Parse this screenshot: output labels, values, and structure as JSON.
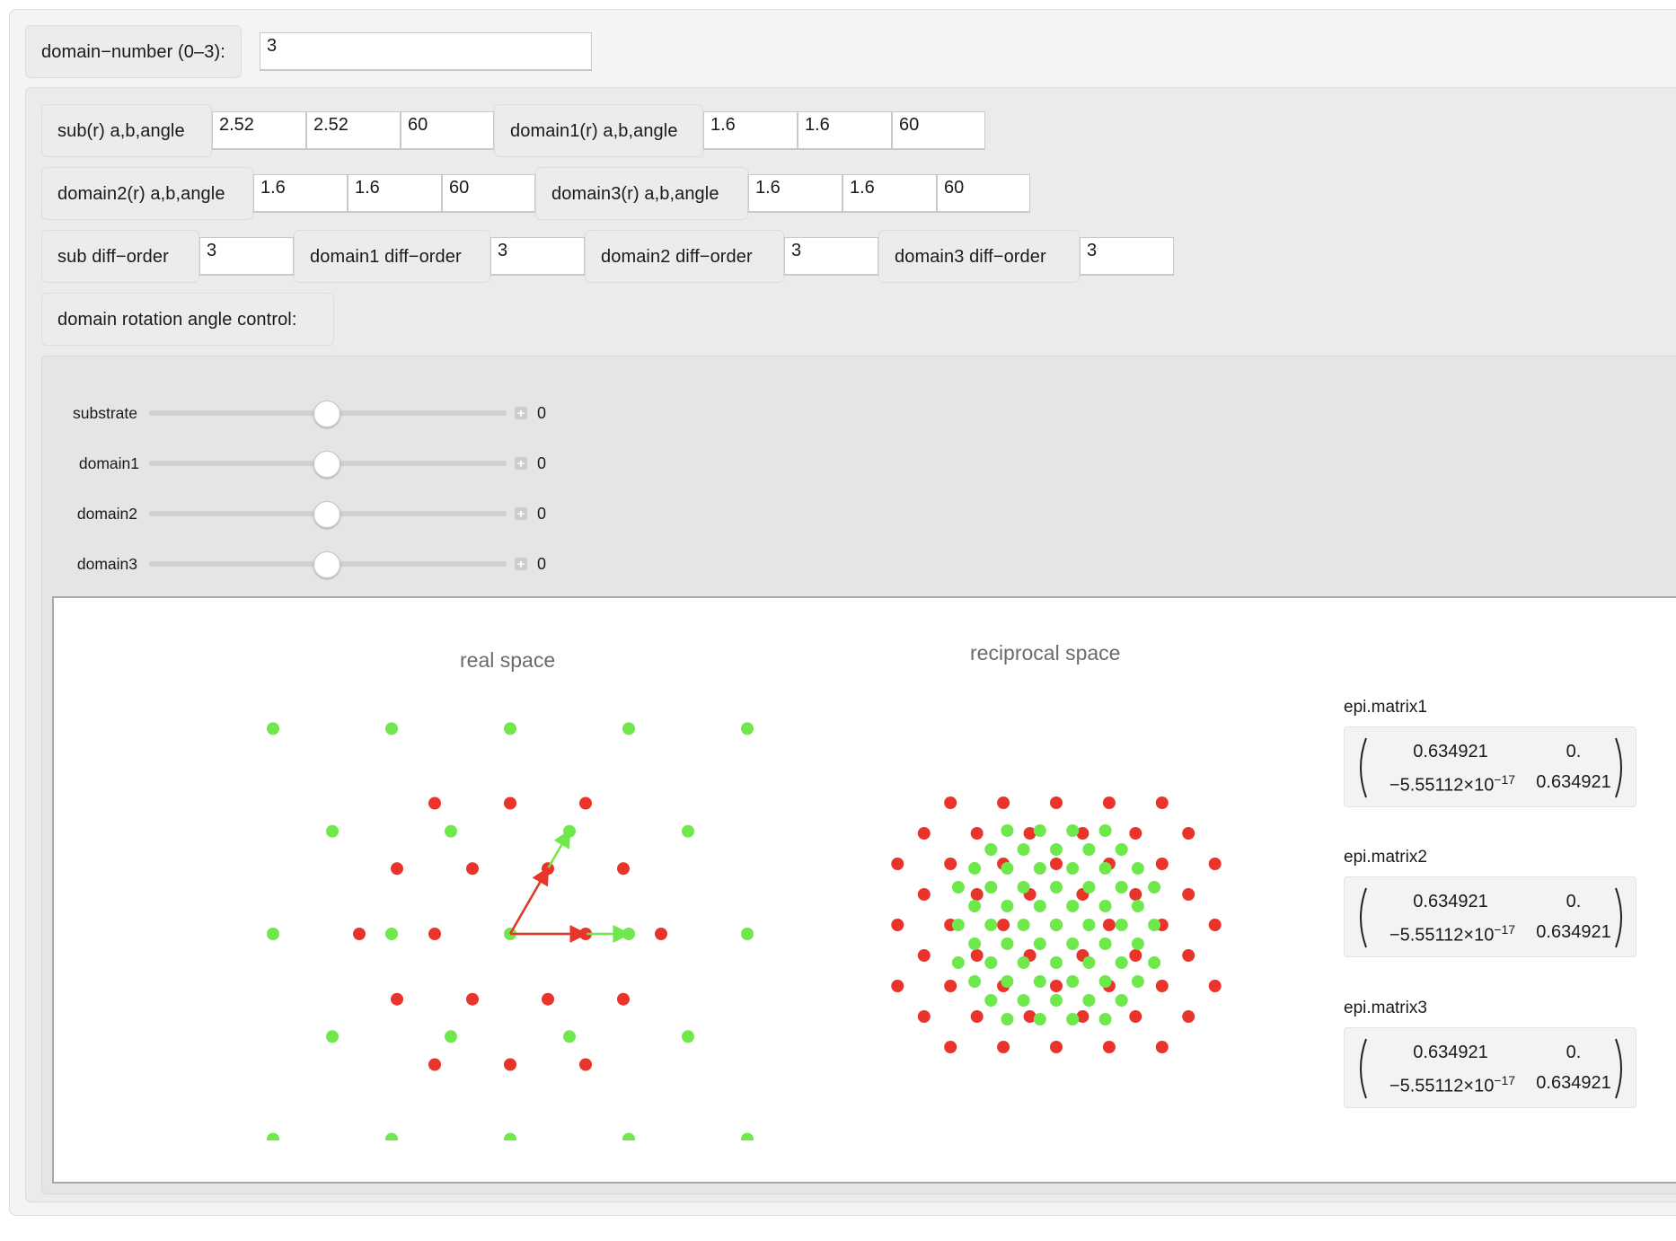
{
  "domain_number": {
    "label": "domain−number (0–3):",
    "value": "3"
  },
  "lattice": [
    {
      "label": "sub(r) a,b,angle",
      "a": "2.52",
      "b": "2.52",
      "angle": "60"
    },
    {
      "label": "domain1(r) a,b,angle",
      "a": "1.6",
      "b": "1.6",
      "angle": "60"
    },
    {
      "label": "domain2(r) a,b,angle",
      "a": "1.6",
      "b": "1.6",
      "angle": "60"
    },
    {
      "label": "domain3(r) a,b,angle",
      "a": "1.6",
      "b": "1.6",
      "angle": "60"
    }
  ],
  "diff_order": [
    {
      "label": "sub diff−order",
      "value": "3"
    },
    {
      "label": "domain1 diff−order",
      "value": "3"
    },
    {
      "label": "domain2 diff−order",
      "value": "3"
    },
    {
      "label": "domain3 diff−order",
      "value": "3"
    }
  ],
  "rotation_label": "domain rotation angle control:",
  "sliders": [
    {
      "label": "substrate",
      "value": "0"
    },
    {
      "label": "domain1",
      "value": "0"
    },
    {
      "label": "domain2",
      "value": "0"
    },
    {
      "label": "domain3",
      "value": "0"
    }
  ],
  "plots": {
    "real_title": "real space",
    "reciprocal_title": "reciprocal space",
    "colors": {
      "substrate": "#e8342a",
      "domain": "#6ee84a"
    }
  },
  "matrices": [
    {
      "label": "epi.matrix1",
      "r1c1": "0.634921",
      "r1c2": "0.",
      "r2c1_mant": "−5.55112×10",
      "r2c1_exp": "−17",
      "r2c2": "0.634921"
    },
    {
      "label": "epi.matrix2",
      "r1c1": "0.634921",
      "r1c2": "0.",
      "r2c1_mant": "−5.55112×10",
      "r2c1_exp": "−17",
      "r2c2": "0.634921"
    },
    {
      "label": "epi.matrix3",
      "r1c1": "0.634921",
      "r1c2": "0.",
      "r2c1_mant": "−5.55112×10",
      "r2c1_exp": "−17",
      "r2c2": "0.634921"
    }
  ]
}
